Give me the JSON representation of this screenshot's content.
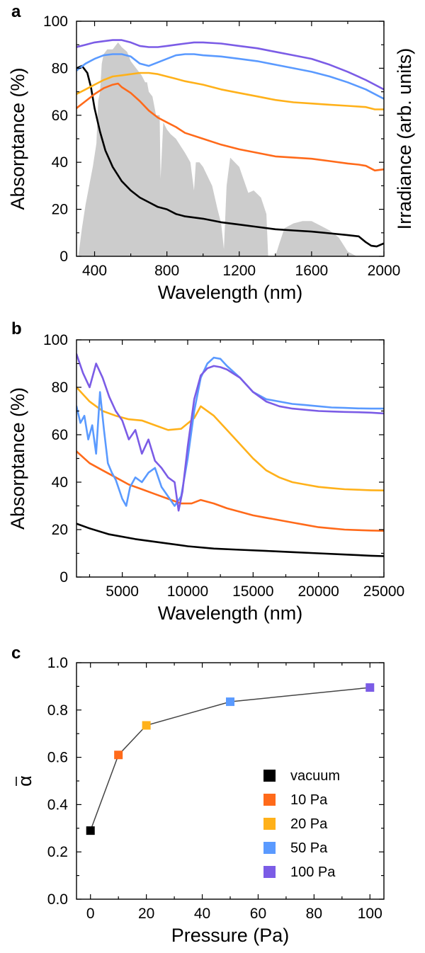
{
  "chart_data": [
    {
      "panel": "a",
      "type": "line",
      "xlabel": "Wavelength (nm)",
      "ylabel": "Absorptance (%)",
      "y2label": "Irradiance (arb. units)",
      "xlim": [
        300,
        2000
      ],
      "ylim": [
        0,
        100
      ],
      "xticks": [
        400,
        800,
        1200,
        1600,
        2000
      ],
      "yticks": [
        0,
        20,
        40,
        60,
        80,
        100
      ],
      "grid": false,
      "irradiance": {
        "color": "#cccccc",
        "x": [
          310,
          330,
          350,
          370,
          390,
          410,
          420,
          430,
          440,
          450,
          470,
          500,
          530,
          550,
          580,
          600,
          630,
          660,
          680,
          690,
          700,
          720,
          740,
          760,
          765,
          780,
          800,
          820,
          850,
          900,
          930,
          950,
          960,
          980,
          1000,
          1050,
          1080,
          1100,
          1115,
          1130,
          1150,
          1200,
          1250,
          1280,
          1320,
          1350,
          1360,
          1380,
          1400,
          1420,
          1450,
          1500,
          1550,
          1600,
          1650,
          1700,
          1750,
          1800,
          1850,
          1900,
          1950,
          2000
        ],
        "y": [
          0,
          12,
          22,
          30,
          38,
          48,
          66,
          70,
          82,
          86,
          88,
          88,
          91,
          89,
          87,
          83,
          80,
          77,
          74,
          74,
          70,
          68,
          60,
          60,
          33,
          57,
          54,
          52,
          50,
          44,
          40,
          28,
          40,
          40,
          38,
          30,
          20,
          14,
          3,
          30,
          42,
          38,
          27,
          28,
          25,
          18,
          0,
          0,
          0,
          5,
          12,
          14,
          15,
          15,
          13,
          11,
          8,
          2,
          0,
          0,
          0,
          0
        ]
      },
      "series": [
        {
          "name": "vacuum",
          "color": "#000000",
          "x": [
            300,
            330,
            360,
            380,
            400,
            430,
            460,
            500,
            550,
            600,
            650,
            700,
            750,
            800,
            850,
            900,
            1000,
            1100,
            1200,
            1300,
            1400,
            1500,
            1600,
            1700,
            1800,
            1860,
            1900,
            1930,
            1960,
            2000
          ],
          "y": [
            80,
            81,
            78,
            72,
            63,
            53,
            45,
            38,
            32,
            28,
            25,
            23,
            21,
            20,
            18,
            17,
            16,
            14.5,
            13.5,
            12.5,
            11.5,
            11,
            10.5,
            9.8,
            9,
            8.5,
            6,
            4.5,
            4.2,
            5.5
          ]
        },
        {
          "name": "10 Pa",
          "color": "#ff6a1a",
          "x": [
            300,
            350,
            400,
            450,
            500,
            530,
            550,
            600,
            650,
            700,
            750,
            800,
            850,
            900,
            1000,
            1100,
            1200,
            1300,
            1400,
            1500,
            1600,
            1700,
            1800,
            1860,
            1900,
            1950,
            2000
          ],
          "y": [
            63,
            66,
            69,
            71.5,
            73,
            73.5,
            72,
            69.5,
            66,
            62,
            59,
            57,
            55,
            52.5,
            50,
            47.5,
            45.5,
            44,
            42.5,
            42,
            41.5,
            40.5,
            39.5,
            39,
            38.5,
            36.5,
            37
          ]
        },
        {
          "name": "20 Pa",
          "color": "#ffb11a",
          "x": [
            300,
            350,
            400,
            450,
            500,
            550,
            600,
            650,
            700,
            750,
            800,
            850,
            900,
            1000,
            1100,
            1200,
            1300,
            1400,
            1500,
            1600,
            1700,
            1800,
            1900,
            1950,
            2000
          ],
          "y": [
            69,
            71,
            73,
            75,
            76.5,
            77,
            77.5,
            78,
            78,
            77.5,
            76.5,
            75.5,
            74.5,
            73,
            71,
            69.5,
            68,
            66.5,
            65.5,
            65,
            64.5,
            64,
            63.5,
            62.5,
            62.5
          ]
        },
        {
          "name": "50 Pa",
          "color": "#5a9aff",
          "x": [
            300,
            350,
            400,
            450,
            500,
            550,
            600,
            650,
            700,
            750,
            800,
            850,
            900,
            950,
            1000,
            1100,
            1200,
            1300,
            1400,
            1500,
            1600,
            1700,
            1800,
            1900,
            2000
          ],
          "y": [
            79,
            82,
            84,
            85.5,
            86,
            86,
            85,
            82,
            81,
            82.5,
            84,
            85.5,
            86,
            86,
            85.5,
            85,
            84,
            83,
            81.5,
            80,
            78.5,
            76.5,
            74,
            71,
            67
          ]
        },
        {
          "name": "100 Pa",
          "color": "#7b5ce6",
          "x": [
            300,
            350,
            400,
            450,
            500,
            550,
            600,
            650,
            700,
            750,
            800,
            850,
            900,
            950,
            1000,
            1100,
            1200,
            1300,
            1400,
            1500,
            1600,
            1700,
            1800,
            1900,
            2000
          ],
          "y": [
            89,
            90,
            91,
            91.5,
            92,
            92,
            91,
            89.5,
            89,
            89,
            89.5,
            90,
            90.5,
            91,
            91,
            90.5,
            89.5,
            88.5,
            87,
            85.5,
            84,
            81.5,
            78.5,
            75,
            71
          ]
        }
      ]
    },
    {
      "panel": "b",
      "type": "line",
      "xlabel": "Wavelength (nm)",
      "ylabel": "Absorptance (%)",
      "xlim": [
        1500,
        25000
      ],
      "ylim": [
        0,
        100
      ],
      "xticks": [
        5000,
        10000,
        15000,
        20000,
        25000
      ],
      "yticks": [
        0,
        20,
        40,
        60,
        80,
        100
      ],
      "grid": false,
      "series": [
        {
          "name": "vacuum",
          "color": "#000000",
          "x": [
            1500,
            2500,
            4000,
            6000,
            8000,
            10000,
            12000,
            14000,
            16000,
            18000,
            20000,
            22000,
            24000,
            25000
          ],
          "y": [
            22.5,
            20.5,
            18,
            16,
            14.5,
            13,
            12,
            11.5,
            11,
            10.5,
            10,
            9.5,
            9,
            8.8
          ]
        },
        {
          "name": "10 Pa",
          "color": "#ff6a1a",
          "x": [
            1500,
            2500,
            3500,
            4500,
            5500,
            6500,
            7500,
            8500,
            9500,
            10300,
            11000,
            12000,
            13000,
            14000,
            15000,
            16000,
            17000,
            18000,
            19000,
            20000,
            21000,
            22000,
            23000,
            24000,
            25000
          ],
          "y": [
            53,
            48,
            45,
            42,
            39,
            37,
            35,
            33,
            31,
            31,
            32.5,
            31,
            29,
            27.5,
            26,
            25,
            24,
            23,
            22,
            21,
            20.5,
            20,
            19.8,
            19.6,
            19.5
          ]
        },
        {
          "name": "20 Pa",
          "color": "#ffb11a",
          "x": [
            1500,
            2500,
            3500,
            4500,
            5500,
            6500,
            7500,
            8500,
            9500,
            10500,
            11000,
            12000,
            13000,
            14000,
            15000,
            16000,
            17000,
            18000,
            19000,
            20000,
            21000,
            22000,
            23000,
            24000,
            25000
          ],
          "y": [
            80,
            74,
            70,
            68,
            66.5,
            66,
            64,
            62,
            62.5,
            67,
            72,
            68,
            62,
            56,
            50,
            45,
            42,
            40,
            39,
            38,
            37.5,
            37,
            36.8,
            36.6,
            36.5
          ]
        },
        {
          "name": "50 Pa",
          "color": "#5a9aff",
          "x": [
            1500,
            1800,
            2100,
            2400,
            2700,
            3000,
            3300,
            3600,
            3900,
            4200,
            4500,
            5000,
            5300,
            5600,
            6000,
            6500,
            7000,
            7500,
            8000,
            8500,
            9000,
            9500,
            10000,
            10500,
            11000,
            11500,
            12000,
            12500,
            13000,
            14000,
            15000,
            16000,
            17000,
            18000,
            19000,
            20000,
            21000,
            22000,
            23000,
            24000,
            25000
          ],
          "y": [
            72,
            65,
            68,
            58,
            64,
            52,
            78,
            62,
            48,
            44,
            41,
            33,
            30,
            38,
            42,
            40,
            44,
            46,
            38,
            34,
            30,
            34,
            50,
            70,
            84,
            90,
            92.5,
            92,
            89,
            84,
            78,
            75,
            74,
            73,
            72.5,
            72,
            71.5,
            71.3,
            71.1,
            71,
            71
          ]
        },
        {
          "name": "100 Pa",
          "color": "#7b5ce6",
          "x": [
            1500,
            2000,
            2500,
            3000,
            3500,
            4000,
            4500,
            5000,
            5500,
            6000,
            6500,
            7000,
            7500,
            8000,
            8500,
            9000,
            9300,
            9600,
            10000,
            10500,
            11000,
            11500,
            12000,
            12500,
            13000,
            14000,
            15000,
            16000,
            17000,
            18000,
            19000,
            20000,
            21000,
            22000,
            23000,
            24000,
            25000
          ],
          "y": [
            94,
            86,
            80,
            90,
            84,
            76,
            70,
            66,
            58,
            62,
            52,
            58,
            49,
            46,
            42,
            40,
            28,
            36,
            55,
            75,
            85,
            88,
            89,
            88.5,
            87.5,
            84,
            78,
            74,
            72,
            71,
            70.5,
            70,
            69.8,
            69.6,
            69.5,
            69.3,
            69
          ]
        }
      ]
    },
    {
      "panel": "c",
      "type": "line",
      "xlabel": "Pressure (Pa)",
      "ylabel": "α",
      "xlim": [
        -5,
        105
      ],
      "ylim": [
        0,
        1
      ],
      "xticks": [
        0,
        20,
        40,
        60,
        80,
        100
      ],
      "yticks": [
        0.0,
        0.2,
        0.4,
        0.6,
        0.8,
        1.0
      ],
      "ytick_labels": [
        "0.0",
        "0.2",
        "0.4",
        "0.6",
        "0.8",
        "1.0"
      ],
      "grid": false,
      "legend_position": "bottom-right",
      "line_color": "#444444",
      "series": [
        {
          "name": "vacuum",
          "color": "#000000",
          "x": [
            0
          ],
          "y": [
            0.29
          ]
        },
        {
          "name": "10 Pa",
          "color": "#ff6a1a",
          "x": [
            10
          ],
          "y": [
            0.61
          ]
        },
        {
          "name": "20 Pa",
          "color": "#ffb11a",
          "x": [
            20
          ],
          "y": [
            0.735
          ]
        },
        {
          "name": "50 Pa",
          "color": "#5a9aff",
          "x": [
            50
          ],
          "y": [
            0.835
          ]
        },
        {
          "name": "100 Pa",
          "color": "#7b5ce6",
          "x": [
            100
          ],
          "y": [
            0.895
          ]
        }
      ]
    }
  ]
}
